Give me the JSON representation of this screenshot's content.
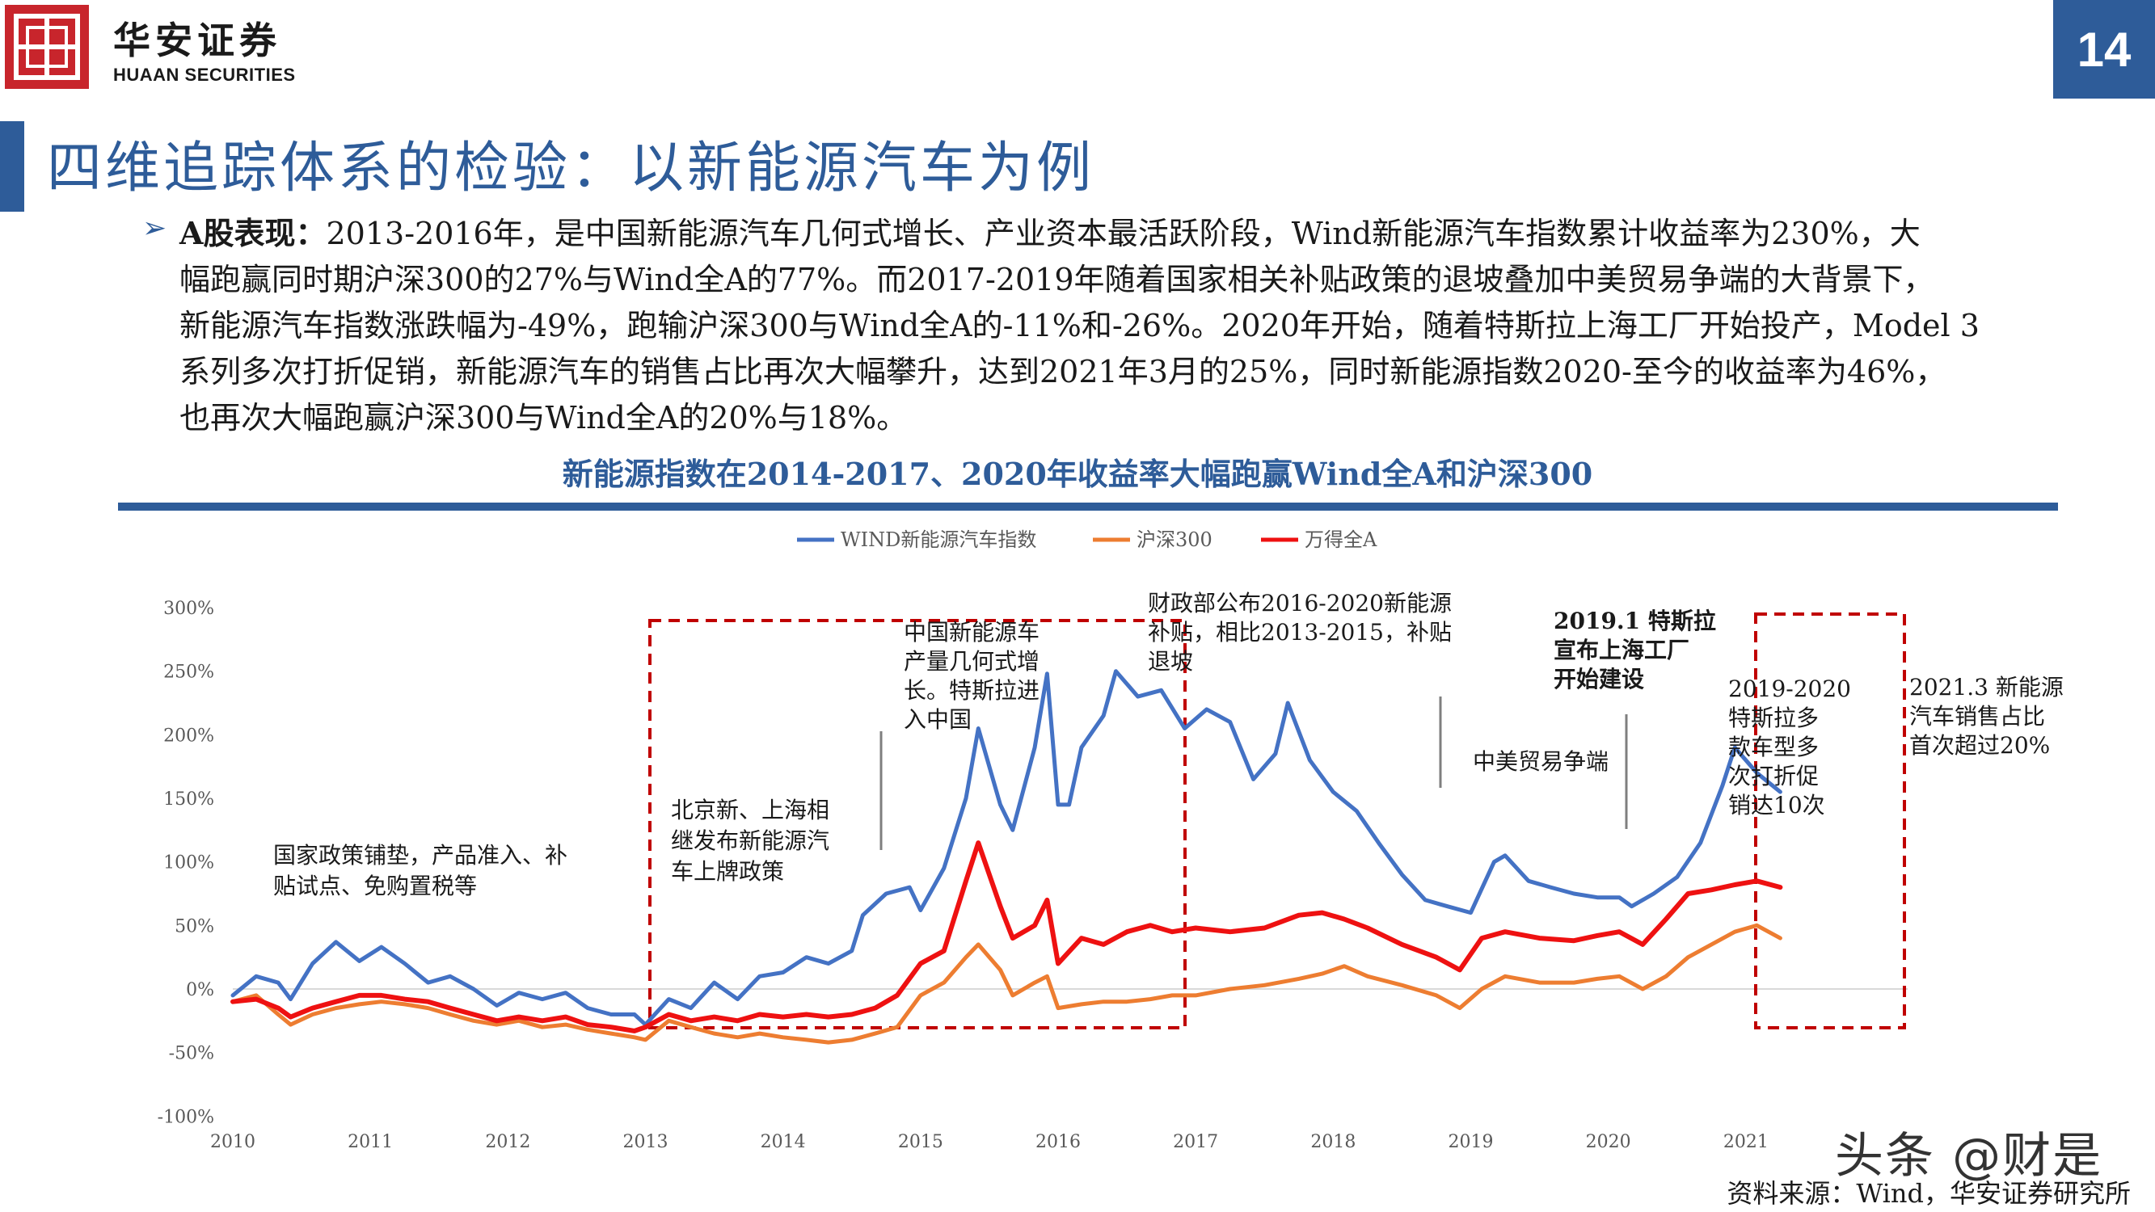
{
  "header": {
    "logo_cn": "华安证券",
    "logo_en": "HUAAN SECURITIES",
    "page_number": "14"
  },
  "title": "四维追踪体系的检验：以新能源汽车为例",
  "body": {
    "lead": "A股表现：",
    "lines": [
      "2013-2016年，是中国新能源汽车几何式增长、产业资本最活跃阶段，Wind新能源汽车指数累计收益率为230%，大",
      "幅跑赢同时期沪深300的27%与Wind全A的77%。而2017-2019年随着国家相关补贴政策的退坡叠加中美贸易争端的大背景下，",
      "新能源汽车指数涨跌幅为-49%，跑输沪深300与Wind全A的-11%和-26%。2020年开始，随着特斯拉上海工厂开始投产，Model 3",
      "系列多次打折促销，新能源汽车的销售占比再次大幅攀升，达到2021年3月的25%，同时新能源指数2020-至今的收益率为46%，",
      "也再次大幅跑赢沪深300与Wind全A的20%与18%。"
    ]
  },
  "subtitle": "新能源指数在2014-2017、2020年收益率大幅跑赢Wind全A和沪深300",
  "source": "资料来源：Wind，华安证券研究所",
  "watermark": "头条 @财是",
  "colors": {
    "brand_blue": "#2e5c99",
    "brand_red": "#c8252c",
    "series_blue": "#4472c4",
    "series_orange": "#ed7d31",
    "series_red": "#ee1111",
    "box_red": "#c00000"
  },
  "chart_data": {
    "type": "line",
    "title": "",
    "xlabel": "",
    "ylabel": "",
    "ylim": [
      -100,
      300
    ],
    "yticks": [
      "300%",
      "250%",
      "200%",
      "150%",
      "100%",
      "50%",
      "0%",
      "-50%",
      "-100%"
    ],
    "ytick_values": [
      300,
      250,
      200,
      150,
      100,
      50,
      0,
      -50,
      -100
    ],
    "xlim": [
      2010,
      2022
    ],
    "xticks": [
      "2010",
      "2011",
      "2012",
      "2013",
      "2014",
      "2015",
      "2016",
      "2017",
      "2018",
      "2019",
      "2020",
      "2021"
    ],
    "xtick_values": [
      2010,
      2011,
      2012,
      2013,
      2014,
      2015,
      2016,
      2017,
      2018,
      2019,
      2020,
      2021
    ],
    "legend_position": "top",
    "grid": false,
    "series": [
      {
        "name": "WIND新能源汽车指数",
        "color_key": "series_blue",
        "points": [
          [
            2010.0,
            -5
          ],
          [
            2010.17,
            10
          ],
          [
            2010.33,
            5
          ],
          [
            2010.42,
            -8
          ],
          [
            2010.58,
            20
          ],
          [
            2010.75,
            37
          ],
          [
            2010.92,
            22
          ],
          [
            2011.08,
            33
          ],
          [
            2011.25,
            20
          ],
          [
            2011.42,
            5
          ],
          [
            2011.58,
            10
          ],
          [
            2011.75,
            0
          ],
          [
            2011.92,
            -13
          ],
          [
            2012.08,
            -3
          ],
          [
            2012.25,
            -8
          ],
          [
            2012.42,
            -3
          ],
          [
            2012.58,
            -15
          ],
          [
            2012.75,
            -20
          ],
          [
            2012.92,
            -20
          ],
          [
            2013.0,
            -28
          ],
          [
            2013.17,
            -8
          ],
          [
            2013.33,
            -15
          ],
          [
            2013.5,
            5
          ],
          [
            2013.67,
            -8
          ],
          [
            2013.83,
            10
          ],
          [
            2014.0,
            13
          ],
          [
            2014.17,
            25
          ],
          [
            2014.33,
            20
          ],
          [
            2014.5,
            30
          ],
          [
            2014.58,
            58
          ],
          [
            2014.75,
            75
          ],
          [
            2014.92,
            80
          ],
          [
            2015.0,
            62
          ],
          [
            2015.17,
            95
          ],
          [
            2015.33,
            150
          ],
          [
            2015.42,
            205
          ],
          [
            2015.58,
            145
          ],
          [
            2015.67,
            125
          ],
          [
            2015.83,
            190
          ],
          [
            2015.92,
            248
          ],
          [
            2016.0,
            145
          ],
          [
            2016.08,
            145
          ],
          [
            2016.17,
            190
          ],
          [
            2016.33,
            215
          ],
          [
            2016.42,
            250
          ],
          [
            2016.58,
            230
          ],
          [
            2016.75,
            235
          ],
          [
            2016.92,
            205
          ],
          [
            2017.08,
            220
          ],
          [
            2017.25,
            210
          ],
          [
            2017.42,
            165
          ],
          [
            2017.58,
            185
          ],
          [
            2017.67,
            225
          ],
          [
            2017.83,
            180
          ],
          [
            2018.0,
            155
          ],
          [
            2018.17,
            140
          ],
          [
            2018.33,
            115
          ],
          [
            2018.5,
            90
          ],
          [
            2018.67,
            70
          ],
          [
            2018.83,
            65
          ],
          [
            2019.0,
            60
          ],
          [
            2019.17,
            100
          ],
          [
            2019.25,
            105
          ],
          [
            2019.42,
            85
          ],
          [
            2019.58,
            80
          ],
          [
            2019.75,
            75
          ],
          [
            2019.92,
            72
          ],
          [
            2020.08,
            72
          ],
          [
            2020.17,
            65
          ],
          [
            2020.33,
            75
          ],
          [
            2020.5,
            88
          ],
          [
            2020.67,
            115
          ],
          [
            2020.83,
            160
          ],
          [
            2020.92,
            190
          ],
          [
            2021.08,
            170
          ],
          [
            2021.25,
            155
          ]
        ]
      },
      {
        "name": "沪深300",
        "color_key": "series_orange",
        "points": [
          [
            2010.0,
            -10
          ],
          [
            2010.17,
            -5
          ],
          [
            2010.33,
            -20
          ],
          [
            2010.42,
            -28
          ],
          [
            2010.58,
            -20
          ],
          [
            2010.75,
            -15
          ],
          [
            2010.92,
            -12
          ],
          [
            2011.08,
            -10
          ],
          [
            2011.25,
            -12
          ],
          [
            2011.42,
            -15
          ],
          [
            2011.58,
            -20
          ],
          [
            2011.75,
            -25
          ],
          [
            2011.92,
            -28
          ],
          [
            2012.08,
            -25
          ],
          [
            2012.25,
            -30
          ],
          [
            2012.42,
            -28
          ],
          [
            2012.58,
            -32
          ],
          [
            2012.75,
            -35
          ],
          [
            2012.92,
            -38
          ],
          [
            2013.0,
            -40
          ],
          [
            2013.17,
            -25
          ],
          [
            2013.33,
            -30
          ],
          [
            2013.5,
            -35
          ],
          [
            2013.67,
            -38
          ],
          [
            2013.83,
            -35
          ],
          [
            2014.0,
            -38
          ],
          [
            2014.17,
            -40
          ],
          [
            2014.33,
            -42
          ],
          [
            2014.5,
            -40
          ],
          [
            2014.67,
            -35
          ],
          [
            2014.83,
            -30
          ],
          [
            2015.0,
            -5
          ],
          [
            2015.17,
            5
          ],
          [
            2015.33,
            25
          ],
          [
            2015.42,
            35
          ],
          [
            2015.58,
            15
          ],
          [
            2015.67,
            -5
          ],
          [
            2015.83,
            5
          ],
          [
            2015.92,
            10
          ],
          [
            2016.0,
            -15
          ],
          [
            2016.17,
            -12
          ],
          [
            2016.33,
            -10
          ],
          [
            2016.5,
            -10
          ],
          [
            2016.67,
            -8
          ],
          [
            2016.83,
            -5
          ],
          [
            2017.0,
            -5
          ],
          [
            2017.25,
            0
          ],
          [
            2017.5,
            3
          ],
          [
            2017.75,
            8
          ],
          [
            2017.92,
            12
          ],
          [
            2018.08,
            18
          ],
          [
            2018.25,
            10
          ],
          [
            2018.5,
            3
          ],
          [
            2018.75,
            -5
          ],
          [
            2018.92,
            -15
          ],
          [
            2019.08,
            0
          ],
          [
            2019.25,
            10
          ],
          [
            2019.5,
            5
          ],
          [
            2019.75,
            5
          ],
          [
            2019.92,
            8
          ],
          [
            2020.08,
            10
          ],
          [
            2020.25,
            0
          ],
          [
            2020.42,
            10
          ],
          [
            2020.58,
            25
          ],
          [
            2020.75,
            35
          ],
          [
            2020.92,
            45
          ],
          [
            2021.08,
            50
          ],
          [
            2021.25,
            40
          ]
        ]
      },
      {
        "name": "万得全A",
        "color_key": "series_red",
        "points": [
          [
            2010.0,
            -10
          ],
          [
            2010.17,
            -8
          ],
          [
            2010.33,
            -15
          ],
          [
            2010.42,
            -22
          ],
          [
            2010.58,
            -15
          ],
          [
            2010.75,
            -10
          ],
          [
            2010.92,
            -5
          ],
          [
            2011.08,
            -5
          ],
          [
            2011.25,
            -8
          ],
          [
            2011.42,
            -10
          ],
          [
            2011.58,
            -15
          ],
          [
            2011.75,
            -20
          ],
          [
            2011.92,
            -25
          ],
          [
            2012.08,
            -22
          ],
          [
            2012.25,
            -25
          ],
          [
            2012.42,
            -22
          ],
          [
            2012.58,
            -28
          ],
          [
            2012.75,
            -30
          ],
          [
            2012.92,
            -33
          ],
          [
            2013.0,
            -30
          ],
          [
            2013.17,
            -20
          ],
          [
            2013.33,
            -25
          ],
          [
            2013.5,
            -22
          ],
          [
            2013.67,
            -25
          ],
          [
            2013.83,
            -20
          ],
          [
            2014.0,
            -22
          ],
          [
            2014.17,
            -20
          ],
          [
            2014.33,
            -22
          ],
          [
            2014.5,
            -20
          ],
          [
            2014.67,
            -15
          ],
          [
            2014.83,
            -5
          ],
          [
            2015.0,
            20
          ],
          [
            2015.17,
            30
          ],
          [
            2015.33,
            85
          ],
          [
            2015.42,
            115
          ],
          [
            2015.58,
            65
          ],
          [
            2015.67,
            40
          ],
          [
            2015.83,
            50
          ],
          [
            2015.92,
            70
          ],
          [
            2016.0,
            20
          ],
          [
            2016.17,
            40
          ],
          [
            2016.33,
            35
          ],
          [
            2016.5,
            45
          ],
          [
            2016.67,
            50
          ],
          [
            2016.83,
            45
          ],
          [
            2017.0,
            48
          ],
          [
            2017.25,
            45
          ],
          [
            2017.5,
            48
          ],
          [
            2017.75,
            58
          ],
          [
            2017.92,
            60
          ],
          [
            2018.08,
            55
          ],
          [
            2018.25,
            48
          ],
          [
            2018.5,
            35
          ],
          [
            2018.75,
            25
          ],
          [
            2018.92,
            15
          ],
          [
            2019.08,
            40
          ],
          [
            2019.25,
            45
          ],
          [
            2019.5,
            40
          ],
          [
            2019.75,
            38
          ],
          [
            2019.92,
            42
          ],
          [
            2020.08,
            45
          ],
          [
            2020.25,
            35
          ],
          [
            2020.42,
            55
          ],
          [
            2020.58,
            75
          ],
          [
            2020.75,
            78
          ],
          [
            2020.92,
            82
          ],
          [
            2021.08,
            85
          ],
          [
            2021.25,
            80
          ]
        ]
      }
    ],
    "annotations": [
      {
        "lines": [
          "国家政策铺垫，产品准入、补",
          "贴试点、免购置税等"
        ],
        "bold": false
      },
      {
        "lines": [
          "北京新、上海相",
          "继发布新能源汽",
          "车上牌政策"
        ],
        "bold": false
      },
      {
        "lines": [
          "中国新能源车",
          "产量几何式增",
          "长。特斯拉进",
          "入中国"
        ],
        "bold": false
      },
      {
        "lines": [
          "财政部公布2016-2020新能源",
          "补贴，相比2013-2015，补贴",
          "退坡"
        ],
        "bold": false
      },
      {
        "lines": [
          "2019.1 特斯拉",
          "宣布上海工厂",
          "开始建设"
        ],
        "bold": true
      },
      {
        "lines": [
          "中美贸易争端"
        ],
        "bold": false
      },
      {
        "lines": [
          "2019-2020",
          "特斯拉多",
          "款车型多",
          "次打折促",
          "销达10次"
        ],
        "bold": false
      },
      {
        "lines": [
          "2021.3 新能源",
          "汽车销售占比",
          "首次超过20%"
        ],
        "bold": false
      }
    ]
  }
}
